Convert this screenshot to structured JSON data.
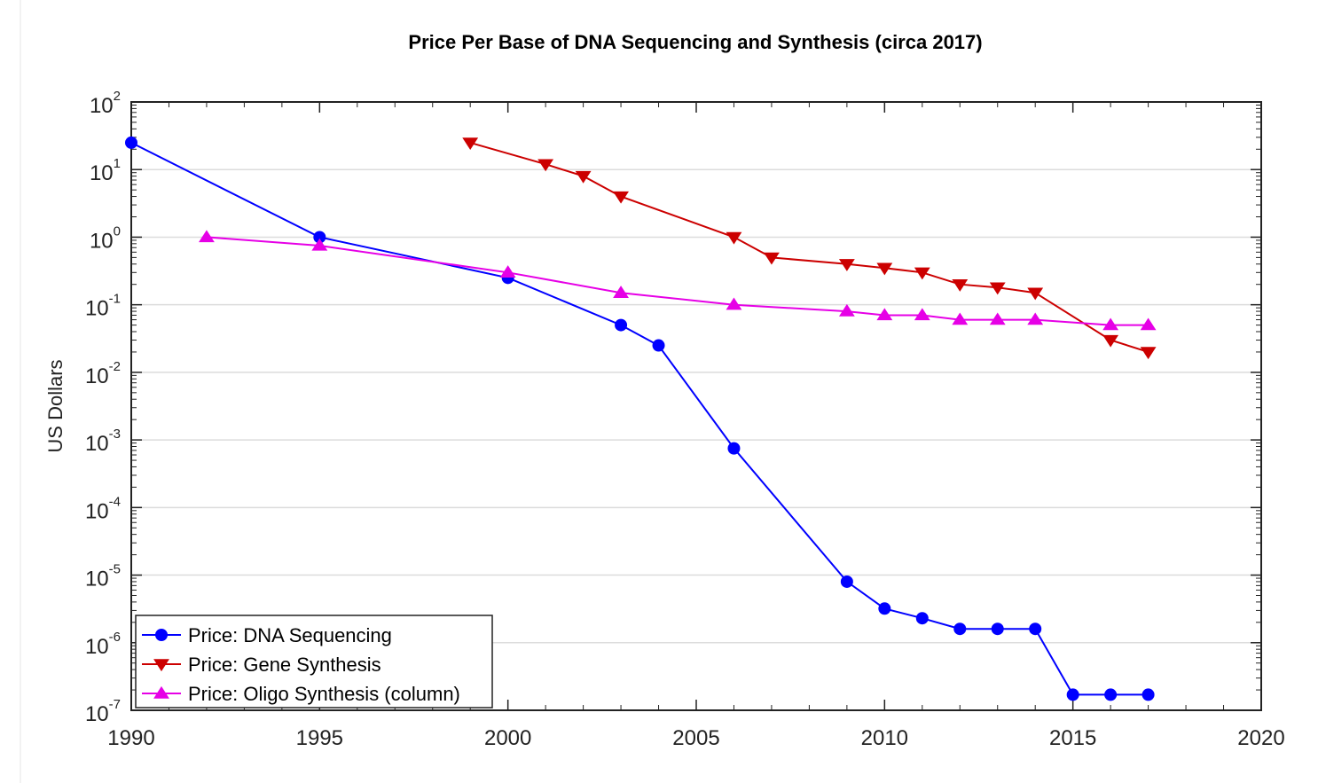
{
  "chart_data": {
    "type": "line",
    "title": "Price Per Base of DNA Sequencing and Synthesis (circa 2017)",
    "xlabel": "",
    "ylabel": "US Dollars",
    "xlim": [
      1990,
      2020
    ],
    "ylim_exponents": [
      -7,
      2
    ],
    "yscale": "log",
    "xticks": [
      "1990",
      "1995",
      "2000",
      "2005",
      "2010",
      "2015",
      "2020"
    ],
    "yticks": [
      {
        "base": "10",
        "exp": "-7"
      },
      {
        "base": "10",
        "exp": "-6"
      },
      {
        "base": "10",
        "exp": "-5"
      },
      {
        "base": "10",
        "exp": "-4"
      },
      {
        "base": "10",
        "exp": "-3"
      },
      {
        "base": "10",
        "exp": "-2"
      },
      {
        "base": "10",
        "exp": "-1"
      },
      {
        "base": "10",
        "exp": "0"
      },
      {
        "base": "10",
        "exp": "1"
      },
      {
        "base": "10",
        "exp": "2"
      }
    ],
    "grid": "horizontal",
    "legend_position": "bottom-left",
    "series": [
      {
        "name": "Price: DNA Sequencing",
        "color": "#0000ff",
        "marker": "circle",
        "x": [
          1990,
          1995,
          2000,
          2003,
          2004,
          2006,
          2009,
          2010,
          2011,
          2012,
          2013,
          2014,
          2015,
          2016,
          2017
        ],
        "y": [
          25,
          1,
          0.25,
          0.05,
          0.025,
          0.00075,
          8e-06,
          3.2e-06,
          2.3e-06,
          1.6e-06,
          1.6e-06,
          1.6e-06,
          1.7e-07,
          1.7e-07,
          1.7e-07
        ]
      },
      {
        "name": "Price: Gene Synthesis",
        "color": "#cc0000",
        "marker": "triangle-down",
        "x": [
          1999,
          2001,
          2002,
          2003,
          2006,
          2007,
          2009,
          2010,
          2011,
          2012,
          2013,
          2014,
          2016,
          2017
        ],
        "y": [
          25,
          12,
          8,
          4,
          1,
          0.5,
          0.4,
          0.35,
          0.3,
          0.2,
          0.18,
          0.15,
          0.03,
          0.02
        ]
      },
      {
        "name": "Price: Oligo Synthesis (column)",
        "color": "#e600e6",
        "marker": "triangle-up",
        "x": [
          1992,
          1995,
          2000,
          2003,
          2006,
          2009,
          2010,
          2011,
          2012,
          2013,
          2014,
          2016,
          2017
        ],
        "y": [
          1,
          0.75,
          0.3,
          0.15,
          0.1,
          0.08,
          0.07,
          0.07,
          0.06,
          0.06,
          0.06,
          0.05,
          0.05
        ]
      }
    ]
  }
}
